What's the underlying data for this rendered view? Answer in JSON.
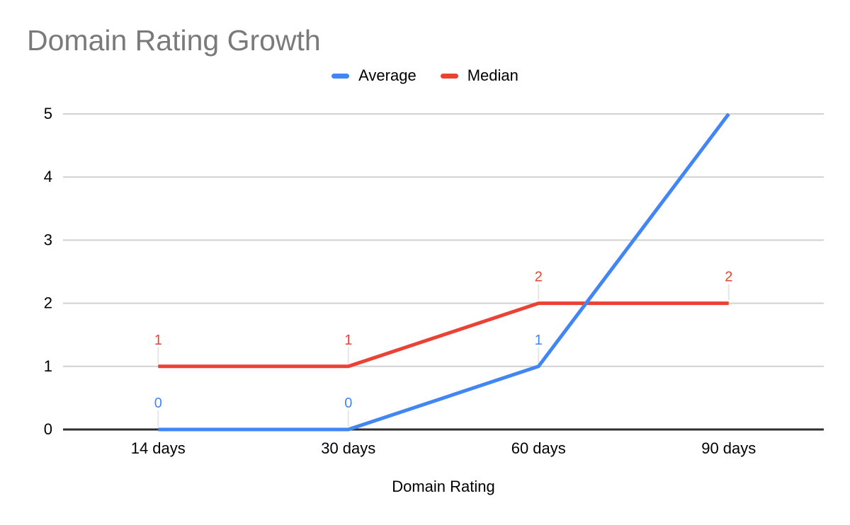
{
  "chart_data": {
    "type": "line",
    "title": "Domain Rating Growth",
    "categories": [
      "14 days",
      "30 days",
      "60 days",
      "90 days"
    ],
    "series": [
      {
        "name": "Average",
        "color": "#4285F4",
        "values": [
          0,
          0,
          1,
          5
        ],
        "point_labels": [
          "0",
          "0",
          "1",
          null
        ]
      },
      {
        "name": "Median",
        "color": "#EA4335",
        "values": [
          1,
          1,
          2,
          2
        ],
        "point_labels": [
          "1",
          "1",
          "2",
          "2"
        ]
      }
    ],
    "xlabel": "Domain Rating",
    "ylabel": "",
    "ylim": [
      0,
      5
    ],
    "yticks": [
      0,
      1,
      2,
      3,
      4,
      5
    ],
    "grid": true,
    "legend_position": "top"
  },
  "colors": {
    "background": "#FFFFFF",
    "title_text": "#7A7A7A",
    "axis_text": "#000000",
    "gridline": "#D1D1D1",
    "axis_line": "#2F2F2F",
    "data_label_tick": "#E6E6E6"
  }
}
